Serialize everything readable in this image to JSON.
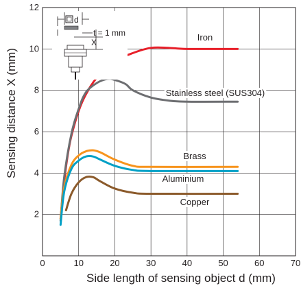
{
  "chart_data": {
    "type": "line",
    "title": "",
    "xlabel": "Side length of sensing object d (mm)",
    "ylabel": "Sensing distance X (mm)",
    "xlim": [
      0,
      70
    ],
    "ylim": [
      0,
      12
    ],
    "xticks": [
      0,
      10,
      20,
      30,
      40,
      50,
      60,
      70
    ],
    "yticks": [
      2,
      4,
      6,
      8,
      10,
      12
    ],
    "grid": true,
    "legend": "inline labels",
    "series": [
      {
        "name": "Iron",
        "color": "#e8202a",
        "x": [
          5,
          6,
          7,
          8,
          10,
          12,
          15,
          20,
          25,
          30,
          35,
          40,
          54
        ],
        "y": [
          1.8,
          3.6,
          4.9,
          5.8,
          7.0,
          7.8,
          8.6,
          9.4,
          9.8,
          10.05,
          10.05,
          10.0,
          10.0
        ]
      },
      {
        "name": "Stainless steel (SUS304)",
        "color": "#6d6e71",
        "x": [
          5,
          6,
          8,
          10,
          12,
          15,
          18,
          20,
          23,
          25,
          30,
          35,
          40,
          54
        ],
        "y": [
          1.7,
          3.8,
          5.9,
          7.1,
          7.9,
          8.35,
          8.55,
          8.5,
          8.3,
          8.0,
          7.65,
          7.5,
          7.45,
          7.45
        ]
      },
      {
        "name": "Brass",
        "color": "#f7941d",
        "x": [
          5,
          6,
          8,
          10,
          12,
          14,
          16,
          20,
          25,
          30,
          54
        ],
        "y": [
          1.8,
          3.3,
          4.4,
          4.85,
          5.05,
          5.1,
          5.0,
          4.65,
          4.35,
          4.3,
          4.3
        ]
      },
      {
        "name": "Aluminium",
        "color": "#00a0c6",
        "x": [
          5,
          6,
          8,
          10,
          12,
          14,
          16,
          20,
          25,
          30,
          54
        ],
        "y": [
          1.5,
          3.1,
          4.2,
          4.6,
          4.8,
          4.8,
          4.65,
          4.35,
          4.15,
          4.1,
          4.1
        ]
      },
      {
        "name": "Copper",
        "color": "#8b5a2b",
        "x": [
          6.5,
          8,
          10,
          12,
          14,
          16,
          20,
          25,
          30,
          54
        ],
        "y": [
          2.2,
          3.0,
          3.55,
          3.8,
          3.8,
          3.6,
          3.25,
          3.05,
          3.0,
          3.0
        ]
      }
    ]
  },
  "inset": {
    "d_label": "d",
    "x_label": "X",
    "t_label": "t = 1 mm"
  }
}
